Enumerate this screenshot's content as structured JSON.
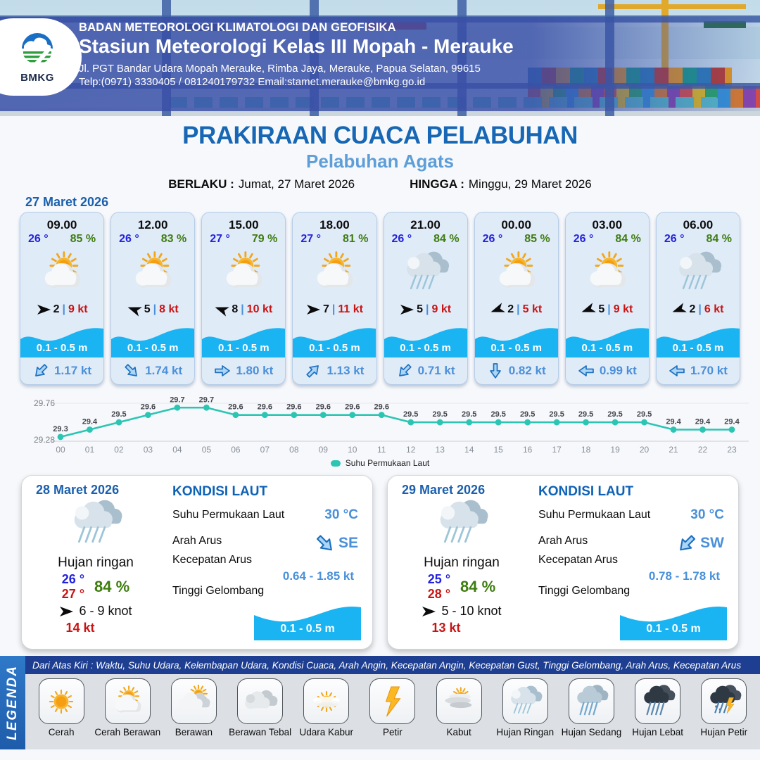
{
  "header": {
    "agency": "BADAN METEOROLOGI KLIMATOLOGI DAN GEOFISIKA",
    "station": "Stasiun Meteorologi Kelas III Mopah - Merauke",
    "address": "Jl. PGT Bandar Udara Mopah Merauke, Rimba Jaya, Merauke, Papua Selatan, 99615",
    "contact": "Telp:(0971) 3330405 / 081240179732  Email:stamet.merauke@bmkg.go.id",
    "logo_text": "BMKG"
  },
  "title": {
    "main": "PRAKIRAAN CUACA PELABUHAN",
    "port": "Pelabuhan Agats",
    "berlaku_label": "BERLAKU :",
    "berlaku_value": "Jumat, 27 Maret 2026",
    "hingga_label": "HINGGA :",
    "hingga_value": "Minggu, 29 Maret 2026"
  },
  "forecast_date": "27 Maret 2026",
  "forecast_cards": [
    {
      "time": "09.00",
      "temp": "26 °",
      "humidity": "85 %",
      "icon": "cerah-berawan",
      "wind_rot": 0,
      "wind_value": "2",
      "gust": "9 kt",
      "wave": "0.1 - 0.5 m",
      "current_dir": "SW",
      "current_speed": "1.17 kt"
    },
    {
      "time": "12.00",
      "temp": "26 °",
      "humidity": "83 %",
      "icon": "cerah-berawan",
      "wind_rot": 200,
      "wind_value": "5",
      "gust": "8 kt",
      "wave": "0.1 - 0.5 m",
      "current_dir": "SE",
      "current_speed": "1.74 kt"
    },
    {
      "time": "15.00",
      "temp": "27 °",
      "humidity": "79 %",
      "icon": "cerah-berawan",
      "wind_rot": 200,
      "wind_value": "8",
      "gust": "10 kt",
      "wave": "0.1 - 0.5 m",
      "current_dir": "E",
      "current_speed": "1.80 kt"
    },
    {
      "time": "18.00",
      "temp": "27 °",
      "humidity": "81 %",
      "icon": "cerah-berawan",
      "wind_rot": 0,
      "wind_value": "7",
      "gust": "11 kt",
      "wave": "0.1 - 0.5 m",
      "current_dir": "NE",
      "current_speed": "1.13 kt"
    },
    {
      "time": "21.00",
      "temp": "26 °",
      "humidity": "84 %",
      "icon": "hujan-ringan",
      "wind_rot": 0,
      "wind_value": "5",
      "gust": "9 kt",
      "wave": "0.1 - 0.5 m",
      "current_dir": "SW",
      "current_speed": "0.71 kt"
    },
    {
      "time": "00.00",
      "temp": "26 °",
      "humidity": "85 %",
      "icon": "cerah-berawan",
      "wind_rot": 160,
      "wind_value": "2",
      "gust": "5 kt",
      "wave": "0.1 - 0.5 m",
      "current_dir": "S",
      "current_speed": "0.82 kt"
    },
    {
      "time": "03.00",
      "temp": "26 °",
      "humidity": "84 %",
      "icon": "cerah-berawan",
      "wind_rot": 160,
      "wind_value": "5",
      "gust": "9 kt",
      "wave": "0.1 - 0.5 m",
      "current_dir": "W",
      "current_speed": "0.99 kt"
    },
    {
      "time": "06.00",
      "temp": "26 °",
      "humidity": "84 %",
      "icon": "hujan-ringan",
      "wind_rot": 160,
      "wind_value": "2",
      "gust": "6 kt",
      "wave": "0.1 - 0.5 m",
      "current_dir": "W",
      "current_speed": "1.70 kt"
    }
  ],
  "chart_data": {
    "type": "line",
    "series_label": "Suhu Permukaan Laut",
    "x": [
      "00",
      "01",
      "02",
      "03",
      "04",
      "05",
      "06",
      "07",
      "08",
      "09",
      "10",
      "11",
      "12",
      "13",
      "14",
      "15",
      "16",
      "17",
      "18",
      "19",
      "20",
      "21",
      "22",
      "23"
    ],
    "values": [
      29.3,
      29.4,
      29.5,
      29.6,
      29.7,
      29.7,
      29.6,
      29.6,
      29.6,
      29.6,
      29.6,
      29.6,
      29.5,
      29.5,
      29.5,
      29.5,
      29.5,
      29.5,
      29.5,
      29.5,
      29.5,
      29.4,
      29.4,
      29.4
    ],
    "ylim": [
      29.28,
      29.76
    ],
    "yticks": [
      "29.76",
      "29.28"
    ],
    "line_color": "#2cc5b4",
    "legend_position": "bottom"
  },
  "daily_cards": [
    {
      "date": "28 Maret 2026",
      "icon": "hujan-ringan",
      "condition": "Hujan ringan",
      "temp_min": "26 °",
      "temp_max": "27 °",
      "humidity": "84 %",
      "wind_range": "6  - 9 knot",
      "gust": "14 kt",
      "sea": {
        "title": "KONDISI LAUT",
        "sst_label": "Suhu Permukaan Laut",
        "sst_value": "30 °C",
        "dir_label": "Arah Arus",
        "dir_value": "SE",
        "speed_label": "Kecepatan Arus",
        "speed_value": "0.64 - 1.85 kt",
        "wave_label": "Tinggi Gelombang",
        "wave_value": "0.1 - 0.5 m"
      }
    },
    {
      "date": "29 Maret 2026",
      "icon": "hujan-ringan",
      "condition": "Hujan ringan",
      "temp_min": "25 °",
      "temp_max": "28 °",
      "humidity": "84 %",
      "wind_range": "5  - 10 knot",
      "gust": "13 kt",
      "sea": {
        "title": "KONDISI LAUT",
        "sst_label": "Suhu Permukaan Laut",
        "sst_value": "30 °C",
        "dir_label": "Arah Arus",
        "dir_value": "SW",
        "speed_label": "Kecepatan Arus",
        "speed_value": "0.78 - 1.78 kt",
        "wave_label": "Tinggi Gelombang",
        "wave_value": "0.1 - 0.5 m"
      }
    }
  ],
  "legend": {
    "ribbon": "LEGENDA",
    "note": "Dari Atas Kiri : Waktu, Suhu Udara, Kelembapan Udara, Kondisi Cuaca, Arah Angin, Kecepatan Angin, Kecepatan Gust, Tinggi Gelombang, Arah Arus, Kecepatan Arus",
    "items": [
      {
        "icon": "cerah",
        "label": "Cerah"
      },
      {
        "icon": "cerah-berawan",
        "label": "Cerah Berawan"
      },
      {
        "icon": "berawan",
        "label": "Berawan"
      },
      {
        "icon": "berawan-tebal",
        "label": "Berawan Tebal"
      },
      {
        "icon": "udara-kabur",
        "label": "Udara Kabur"
      },
      {
        "icon": "petir",
        "label": "Petir"
      },
      {
        "icon": "kabut",
        "label": "Kabut"
      },
      {
        "icon": "hujan-ringan",
        "label": "Hujan Ringan"
      },
      {
        "icon": "hujan-sedang",
        "label": "Hujan Sedang"
      },
      {
        "icon": "hujan-lebat",
        "label": "Hujan Lebat"
      },
      {
        "icon": "hujan-petir",
        "label": "Hujan Petir"
      }
    ]
  },
  "colors": {
    "title_blue": "#1767b5",
    "port_blue": "#5e9ed8",
    "temp_blue": "#2222dd",
    "humidity_green": "#3e7c10",
    "gust_red": "#c81414",
    "wave_cyan": "#1ab4f2",
    "current_blue": "#4a90d9",
    "chart_teal": "#2cc5b4",
    "legend_bar_navy": "#1d3e91"
  }
}
